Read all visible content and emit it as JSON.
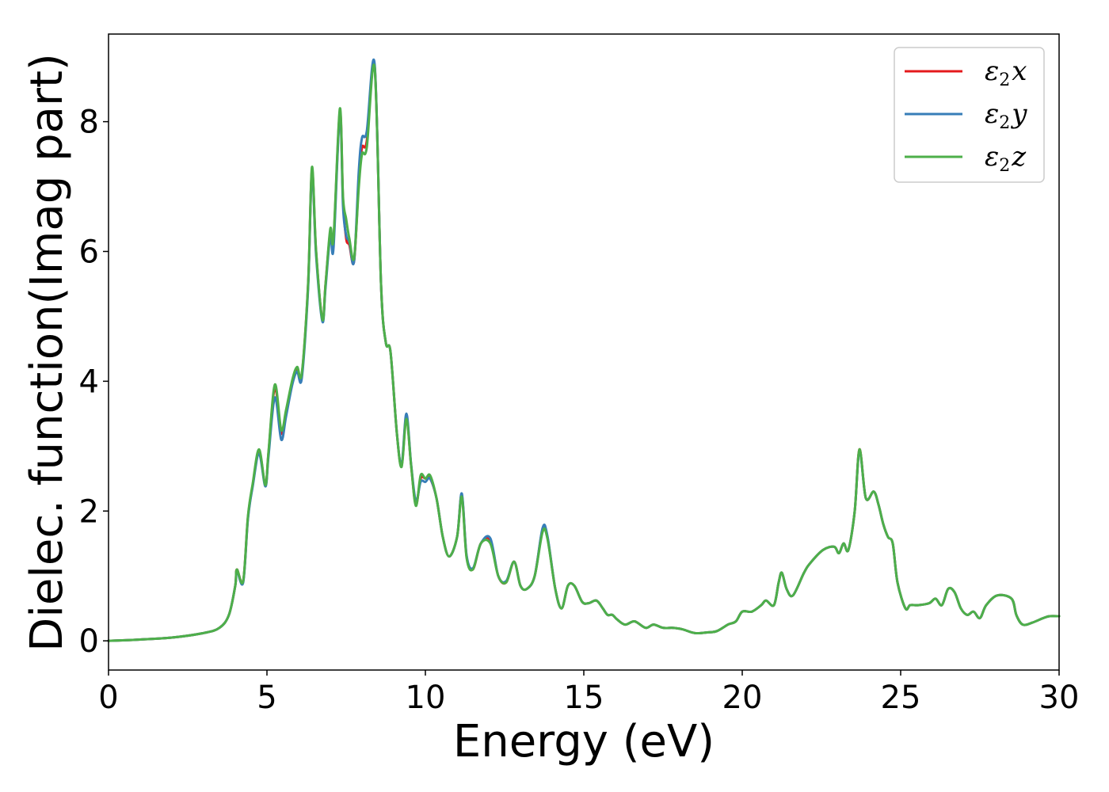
{
  "chart_data": {
    "type": "line",
    "title": "",
    "xlabel": "Energy (eV)",
    "ylabel": "Dielec. function(Imag part)",
    "xlim": [
      0,
      30
    ],
    "ylim": [
      -0.45,
      9.35
    ],
    "xticks": [
      0,
      5,
      10,
      15,
      20,
      25,
      30
    ],
    "xtick_labels": [
      "0",
      "5",
      "10",
      "15",
      "20",
      "25",
      "30"
    ],
    "yticks": [
      0,
      2,
      4,
      6,
      8
    ],
    "ytick_labels": [
      "0",
      "2",
      "4",
      "6",
      "8"
    ],
    "grid": false,
    "legend": "top-right",
    "series": [
      {
        "name": "ε₂x",
        "legend_main": "ε",
        "legend_sub": "2",
        "legend_axis": "x",
        "color": "#e41a1c",
        "x": [
          0,
          1,
          2,
          3,
          3.5,
          3.8,
          4.0,
          4.05,
          4.25,
          4.4,
          4.55,
          4.75,
          4.95,
          5.05,
          5.25,
          5.45,
          5.6,
          5.8,
          5.95,
          6.1,
          6.3,
          6.42,
          6.55,
          6.75,
          6.85,
          7.0,
          7.1,
          7.3,
          7.4,
          7.5,
          7.6,
          7.75,
          7.9,
          8.0,
          8.15,
          8.4,
          8.6,
          8.75,
          8.9,
          9.1,
          9.25,
          9.4,
          9.55,
          9.7,
          9.85,
          10.0,
          10.15,
          10.35,
          10.55,
          10.75,
          11.0,
          11.15,
          11.3,
          11.5,
          11.75,
          12.05,
          12.3,
          12.55,
          12.8,
          13.0,
          13.2,
          13.45,
          13.7,
          13.85,
          14.1,
          14.3,
          14.5,
          14.7,
          14.95,
          15.15,
          15.4,
          15.6,
          15.75,
          15.9,
          16.05,
          16.3,
          16.6,
          16.95,
          17.2,
          17.5,
          17.8,
          18.1,
          18.5,
          18.9,
          19.2,
          19.55,
          19.8,
          20.0,
          20.3,
          20.6,
          20.75,
          21.0,
          21.15,
          21.25,
          21.4,
          21.6,
          21.95,
          22.15,
          22.55,
          22.9,
          23.05,
          23.2,
          23.35,
          23.55,
          23.7,
          23.9,
          24.15,
          24.3,
          24.45,
          24.6,
          24.75,
          24.9,
          25.15,
          25.3,
          25.55,
          25.9,
          26.1,
          26.3,
          26.5,
          26.7,
          26.9,
          27.1,
          27.3,
          27.5,
          27.7,
          28.05,
          28.5,
          28.65,
          28.85,
          29.15,
          29.5,
          29.7,
          30.0
        ],
        "y": [
          0.0,
          0.02,
          0.05,
          0.12,
          0.2,
          0.4,
          0.85,
          1.1,
          0.92,
          1.9,
          2.4,
          2.92,
          2.4,
          2.9,
          3.9,
          3.2,
          3.5,
          4.0,
          4.2,
          4.1,
          5.5,
          7.25,
          6.0,
          4.95,
          5.5,
          6.3,
          6.15,
          8.15,
          6.8,
          6.2,
          6.1,
          5.85,
          7.1,
          7.6,
          7.7,
          8.85,
          5.5,
          4.6,
          4.45,
          3.2,
          2.7,
          3.45,
          2.7,
          2.1,
          2.5,
          2.5,
          2.5,
          2.2,
          1.6,
          1.3,
          1.6,
          2.25,
          1.3,
          1.1,
          1.5,
          1.55,
          1.0,
          0.9,
          1.22,
          0.85,
          0.8,
          1.0,
          1.72,
          1.6,
          0.8,
          0.5,
          0.85,
          0.85,
          0.6,
          0.58,
          0.62,
          0.5,
          0.4,
          0.4,
          0.33,
          0.25,
          0.3,
          0.2,
          0.25,
          0.2,
          0.2,
          0.18,
          0.12,
          0.13,
          0.15,
          0.25,
          0.3,
          0.45,
          0.45,
          0.55,
          0.62,
          0.55,
          0.9,
          1.05,
          0.8,
          0.7,
          1.05,
          1.2,
          1.4,
          1.45,
          1.35,
          1.5,
          1.4,
          2.0,
          2.95,
          2.2,
          2.3,
          2.1,
          1.8,
          1.6,
          1.5,
          0.9,
          0.5,
          0.55,
          0.55,
          0.58,
          0.65,
          0.55,
          0.8,
          0.75,
          0.5,
          0.4,
          0.45,
          0.35,
          0.55,
          0.7,
          0.65,
          0.4,
          0.25,
          0.28,
          0.35,
          0.38,
          0.38
        ]
      },
      {
        "name": "ε₂y",
        "legend_main": "ε",
        "legend_sub": "2",
        "legend_axis": "y",
        "color": "#377eb8",
        "x": [
          0,
          1,
          2,
          3,
          3.5,
          3.8,
          4.0,
          4.05,
          4.25,
          4.4,
          4.55,
          4.75,
          4.95,
          5.05,
          5.25,
          5.45,
          5.6,
          5.8,
          5.95,
          6.1,
          6.3,
          6.42,
          6.55,
          6.75,
          6.85,
          7.0,
          7.1,
          7.3,
          7.4,
          7.5,
          7.6,
          7.75,
          7.9,
          8.0,
          8.15,
          8.4,
          8.6,
          8.75,
          8.9,
          9.1,
          9.25,
          9.4,
          9.55,
          9.7,
          9.85,
          10.0,
          10.15,
          10.35,
          10.55,
          10.75,
          11.0,
          11.15,
          11.3,
          11.5,
          11.75,
          12.05,
          12.3,
          12.55,
          12.8,
          13.0,
          13.2,
          13.45,
          13.7,
          13.85,
          14.1,
          14.3,
          14.5,
          14.7,
          14.95,
          15.15,
          15.4,
          15.6,
          15.75,
          15.9,
          16.05,
          16.3,
          16.6,
          16.95,
          17.2,
          17.5,
          17.8,
          18.1,
          18.5,
          18.9,
          19.2,
          19.55,
          19.8,
          20.0,
          20.3,
          20.6,
          20.75,
          21.0,
          21.15,
          21.25,
          21.4,
          21.6,
          21.95,
          22.15,
          22.55,
          22.9,
          23.05,
          23.2,
          23.35,
          23.55,
          23.7,
          23.9,
          24.15,
          24.3,
          24.45,
          24.6,
          24.75,
          24.9,
          25.15,
          25.3,
          25.55,
          25.9,
          26.1,
          26.3,
          26.5,
          26.7,
          26.9,
          27.1,
          27.3,
          27.5,
          27.7,
          28.05,
          28.5,
          28.65,
          28.85,
          29.15,
          29.5,
          29.7,
          30.0
        ],
        "y": [
          0.0,
          0.02,
          0.05,
          0.12,
          0.2,
          0.4,
          0.85,
          1.08,
          0.9,
          1.88,
          2.38,
          2.88,
          2.38,
          2.85,
          3.75,
          3.1,
          3.45,
          3.95,
          4.15,
          4.05,
          5.45,
          7.22,
          5.95,
          4.92,
          5.45,
          6.25,
          6.05,
          8.12,
          6.7,
          6.25,
          6.15,
          5.85,
          7.25,
          7.75,
          7.85,
          8.88,
          5.5,
          4.6,
          4.45,
          3.2,
          2.72,
          3.5,
          2.72,
          2.15,
          2.45,
          2.45,
          2.5,
          2.2,
          1.6,
          1.3,
          1.6,
          2.27,
          1.32,
          1.12,
          1.5,
          1.58,
          1.0,
          0.92,
          1.22,
          0.85,
          0.8,
          1.0,
          1.74,
          1.62,
          0.8,
          0.5,
          0.85,
          0.85,
          0.6,
          0.58,
          0.62,
          0.5,
          0.4,
          0.4,
          0.33,
          0.25,
          0.3,
          0.2,
          0.25,
          0.2,
          0.2,
          0.18,
          0.12,
          0.13,
          0.15,
          0.25,
          0.3,
          0.45,
          0.45,
          0.55,
          0.62,
          0.55,
          0.9,
          1.05,
          0.8,
          0.7,
          1.05,
          1.2,
          1.4,
          1.45,
          1.35,
          1.5,
          1.4,
          2.0,
          2.93,
          2.2,
          2.3,
          2.1,
          1.8,
          1.6,
          1.5,
          0.9,
          0.5,
          0.55,
          0.55,
          0.58,
          0.65,
          0.55,
          0.8,
          0.75,
          0.5,
          0.4,
          0.45,
          0.35,
          0.55,
          0.7,
          0.65,
          0.4,
          0.25,
          0.28,
          0.35,
          0.38,
          0.38
        ]
      },
      {
        "name": "ε₂z",
        "legend_main": "ε",
        "legend_sub": "2",
        "legend_axis": "z",
        "color": "#4daf4a",
        "x": [
          0,
          1,
          2,
          3,
          3.5,
          3.8,
          4.0,
          4.05,
          4.25,
          4.4,
          4.55,
          4.75,
          4.95,
          5.05,
          5.25,
          5.45,
          5.6,
          5.8,
          5.95,
          6.1,
          6.3,
          6.42,
          6.55,
          6.75,
          6.85,
          7.0,
          7.1,
          7.3,
          7.4,
          7.5,
          7.6,
          7.75,
          7.9,
          8.0,
          8.15,
          8.4,
          8.6,
          8.75,
          8.9,
          9.1,
          9.25,
          9.4,
          9.55,
          9.7,
          9.85,
          10.0,
          10.15,
          10.35,
          10.55,
          10.75,
          11.0,
          11.15,
          11.3,
          11.5,
          11.75,
          12.05,
          12.3,
          12.55,
          12.8,
          13.0,
          13.2,
          13.45,
          13.7,
          13.85,
          14.1,
          14.3,
          14.5,
          14.7,
          14.95,
          15.15,
          15.4,
          15.6,
          15.75,
          15.9,
          16.05,
          16.3,
          16.6,
          16.95,
          17.2,
          17.5,
          17.8,
          18.1,
          18.5,
          18.9,
          19.2,
          19.55,
          19.8,
          20.0,
          20.3,
          20.6,
          20.75,
          21.0,
          21.15,
          21.25,
          21.4,
          21.6,
          21.95,
          22.15,
          22.55,
          22.9,
          23.05,
          23.2,
          23.35,
          23.55,
          23.7,
          23.9,
          24.15,
          24.3,
          24.45,
          24.6,
          24.75,
          24.9,
          25.15,
          25.3,
          25.55,
          25.9,
          26.1,
          26.3,
          26.5,
          26.7,
          26.9,
          27.1,
          27.3,
          27.5,
          27.7,
          28.05,
          28.5,
          28.65,
          28.85,
          29.15,
          29.5,
          29.7,
          30.0
        ],
        "y": [
          0.0,
          0.02,
          0.05,
          0.12,
          0.2,
          0.4,
          0.85,
          1.1,
          0.92,
          1.92,
          2.42,
          2.95,
          2.4,
          2.92,
          3.95,
          3.25,
          3.55,
          4.02,
          4.22,
          4.12,
          5.52,
          7.3,
          6.02,
          4.95,
          5.5,
          6.35,
          6.2,
          8.2,
          6.85,
          6.5,
          6.2,
          5.9,
          7.0,
          7.5,
          7.6,
          8.82,
          5.5,
          4.6,
          4.45,
          3.2,
          2.68,
          3.42,
          2.7,
          2.08,
          2.55,
          2.5,
          2.55,
          2.2,
          1.6,
          1.3,
          1.6,
          2.22,
          1.28,
          1.1,
          1.5,
          1.5,
          1.0,
          0.9,
          1.22,
          0.85,
          0.8,
          1.0,
          1.68,
          1.58,
          0.8,
          0.5,
          0.85,
          0.85,
          0.6,
          0.58,
          0.62,
          0.5,
          0.4,
          0.4,
          0.33,
          0.25,
          0.3,
          0.2,
          0.25,
          0.2,
          0.2,
          0.18,
          0.12,
          0.13,
          0.15,
          0.25,
          0.3,
          0.45,
          0.45,
          0.55,
          0.62,
          0.55,
          0.9,
          1.05,
          0.8,
          0.7,
          1.05,
          1.2,
          1.4,
          1.45,
          1.35,
          1.5,
          1.4,
          2.0,
          2.95,
          2.2,
          2.3,
          2.1,
          1.8,
          1.6,
          1.5,
          0.9,
          0.5,
          0.55,
          0.55,
          0.58,
          0.65,
          0.55,
          0.8,
          0.75,
          0.5,
          0.4,
          0.45,
          0.35,
          0.55,
          0.7,
          0.65,
          0.4,
          0.25,
          0.28,
          0.35,
          0.38,
          0.38
        ]
      }
    ]
  }
}
